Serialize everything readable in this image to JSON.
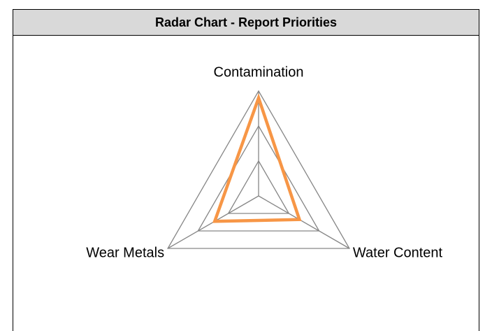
{
  "chart_data": {
    "type": "radar",
    "title": "Radar Chart - Report Priorities",
    "categories": [
      "Contamination",
      "Water Content",
      "Wear Metals"
    ],
    "series": [
      {
        "name": null,
        "color": "#f79646",
        "values": [
          2.8,
          1.35,
          1.45
        ]
      }
    ],
    "ylim": [
      0,
      3
    ],
    "yticks": [
      1,
      2,
      3
    ],
    "grid": true
  }
}
